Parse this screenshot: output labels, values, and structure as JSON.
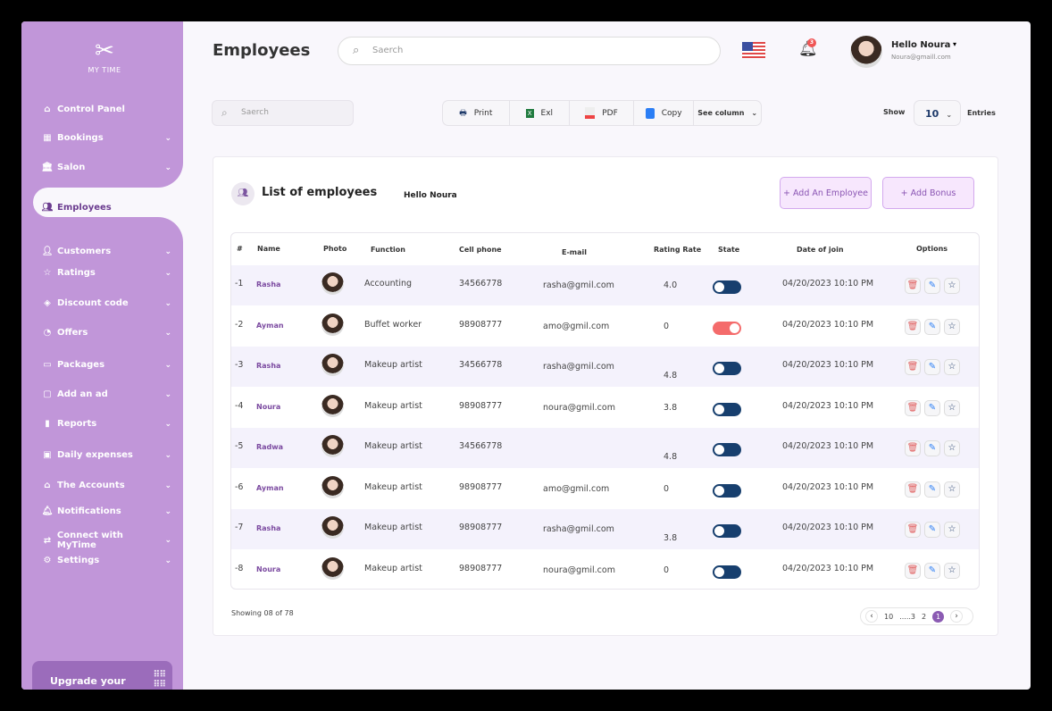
{
  "sidebar": {
    "logo_text": "MY TIME",
    "items": [
      {
        "label": "Control Panel",
        "icon": "home-icon",
        "chev": false
      },
      {
        "label": "Bookings",
        "icon": "calendar-icon",
        "chev": true
      },
      {
        "label": "Salon",
        "icon": "building-icon",
        "chev": true
      },
      {
        "label": "Employees",
        "icon": "people-icon",
        "chev": false,
        "active": true
      },
      {
        "label": "Customers",
        "icon": "users-icon",
        "chev": true
      },
      {
        "label": "Ratings",
        "icon": "star-icon",
        "chev": true
      },
      {
        "label": "Discount code",
        "icon": "tag-icon",
        "chev": true
      },
      {
        "label": "Offers",
        "icon": "offer-icon",
        "chev": true
      },
      {
        "label": "Packages",
        "icon": "package-icon",
        "chev": true
      },
      {
        "label": "Add an ad",
        "icon": "ad-icon",
        "chev": true
      },
      {
        "label": "Reports",
        "icon": "chart-icon",
        "chev": true
      },
      {
        "label": "Daily expenses",
        "icon": "wallet-icon",
        "chev": true
      },
      {
        "label": "The Accounts",
        "icon": "bank-icon",
        "chev": true
      },
      {
        "label": "Notifications",
        "icon": "bell-icon",
        "chev": true
      },
      {
        "label": "Connect with MyTime",
        "icon": "connect-icon",
        "chev": true
      },
      {
        "label": "Settings",
        "icon": "gear-icon",
        "chev": true
      }
    ],
    "upgrade": "Upgrade your"
  },
  "header": {
    "title": "Employees",
    "search_placeholder": "Saerch",
    "notifications": "3",
    "user_name": "Hello Noura",
    "user_email": "Noura@gmaill.com"
  },
  "toolbar": {
    "search_placeholder": "Saerch",
    "print": "Print",
    "excel": "Exl",
    "pdf": "PDF",
    "copy": "Copy",
    "see_column": "See column",
    "show": "Show",
    "entries_value": "10",
    "entries": "Entries"
  },
  "card": {
    "title": "List of employees",
    "hello": "Hello Noura",
    "add_employee": "+ Add An Employee",
    "add_bonus": "+ Add Bonus"
  },
  "table": {
    "headers": [
      "#",
      "Name",
      "Photo",
      "Function",
      "Cell phone",
      "E-mail",
      "Rating Rate",
      "State",
      "Date of join",
      "Options"
    ],
    "rows": [
      {
        "n": "-1",
        "name": "Rasha",
        "function": "Accounting",
        "phone": "34566778",
        "email": "rasha@gmil.com",
        "rating": "4.0",
        "state": "off",
        "date": "04/20/2023 10:10 PM"
      },
      {
        "n": "-2",
        "name": "Ayman",
        "function": "Buffet worker",
        "phone": "98908777",
        "email": "amo@gmil.com",
        "rating": "0",
        "state": "on",
        "date": "04/20/2023 10:10 PM"
      },
      {
        "n": "-3",
        "name": "Rasha",
        "function": "Makeup artist",
        "phone": "34566778",
        "email": "rasha@gmil.com",
        "rating": "4.8",
        "state": "off",
        "date": "04/20/2023 10:10 PM"
      },
      {
        "n": "-4",
        "name": "Noura",
        "function": "Makeup artist",
        "phone": "98908777",
        "email": "noura@gmil.com",
        "rating": "3.8",
        "state": "off",
        "date": "04/20/2023 10:10 PM"
      },
      {
        "n": "-5",
        "name": "Radwa",
        "function": "Makeup artist",
        "phone": "34566778",
        "email": "",
        "rating": "4.8",
        "state": "off",
        "date": "04/20/2023 10:10 PM"
      },
      {
        "n": "-6",
        "name": "Ayman",
        "function": "Makeup artist",
        "phone": "98908777",
        "email": "amo@gmil.com",
        "rating": "0",
        "state": "off",
        "date": "04/20/2023 10:10 PM"
      },
      {
        "n": "-7",
        "name": "Rasha",
        "function": "Makeup artist",
        "phone": "98908777",
        "email": "rasha@gmil.com",
        "rating": "3.8",
        "state": "off",
        "date": "04/20/2023 10:10 PM"
      },
      {
        "n": "-8",
        "name": "Noura",
        "function": "Makeup artist",
        "phone": "98908777",
        "email": "noura@gmil.com",
        "rating": "0",
        "state": "off",
        "date": "04/20/2023 10:10 PM"
      }
    ]
  },
  "footer": {
    "showing": "Showing 08 of 78",
    "pages": [
      "10",
      ".....3",
      "2",
      "1"
    ],
    "current_page": "1"
  },
  "colors": {
    "sidebar": "#c196d9",
    "accent": "#8b5bb3",
    "toggle_off": "#173f6e",
    "toggle_on": "#f46b6b"
  }
}
